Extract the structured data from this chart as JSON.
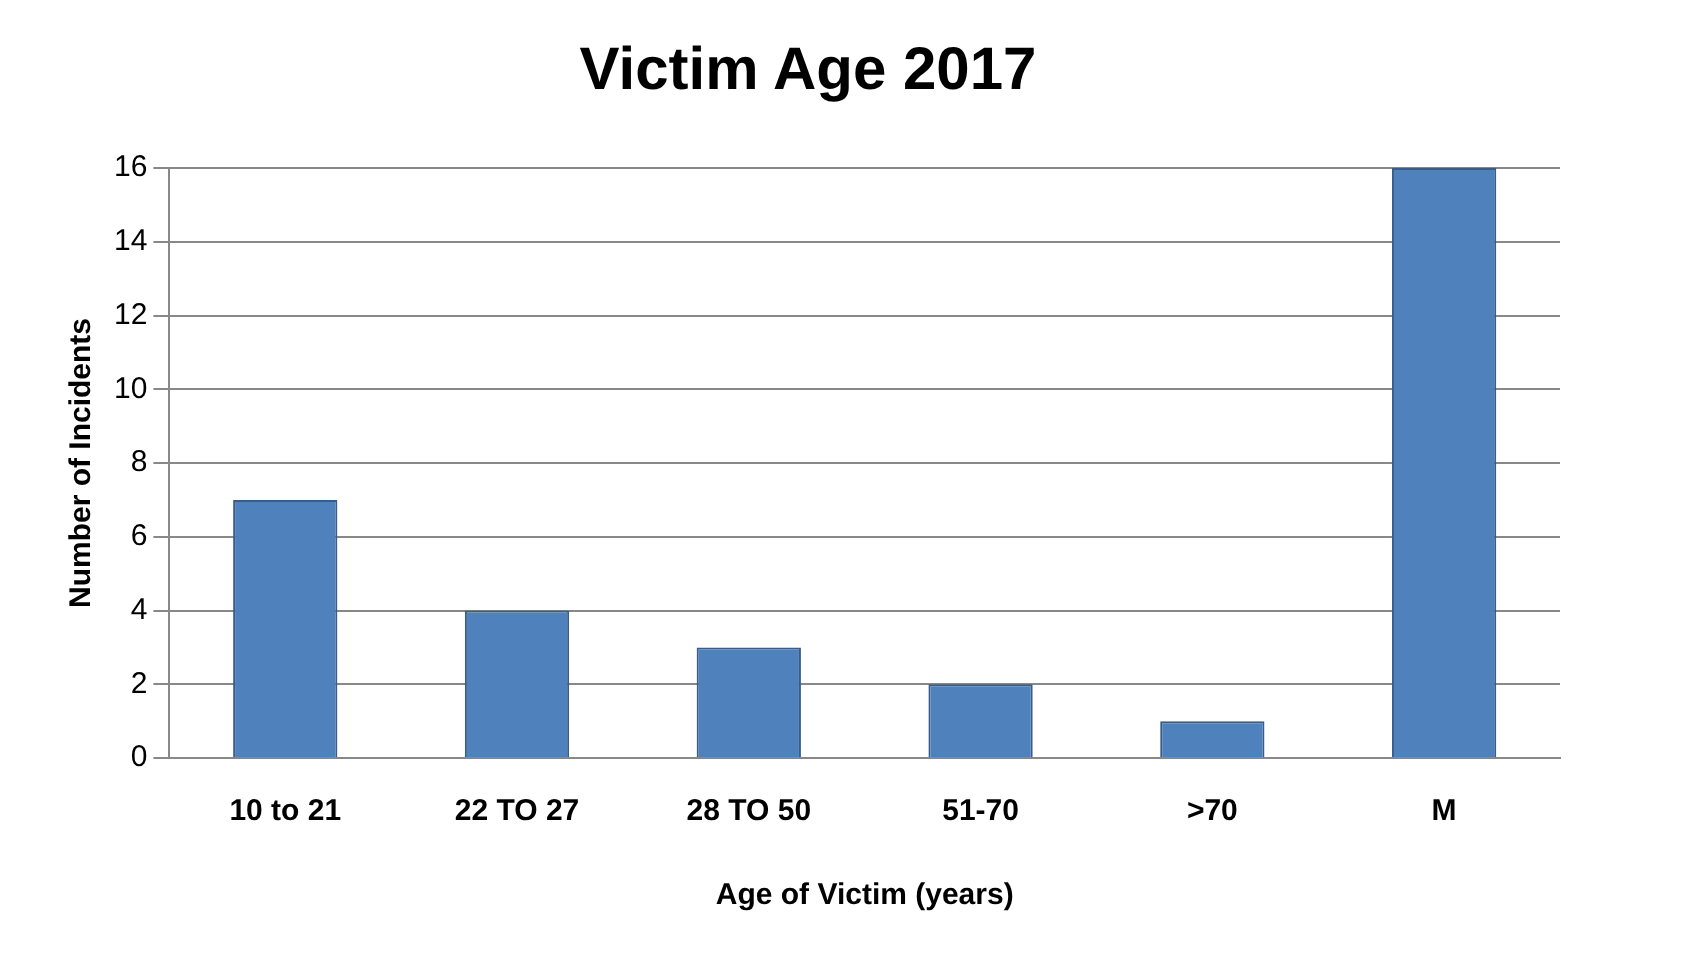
{
  "chart_data": {
    "type": "bar",
    "title": "Victim Age 2017",
    "xlabel": "Age of Victim (years)",
    "ylabel": "Number of Incidents",
    "categories": [
      "10 to 21",
      "22 TO 27",
      "28 TO 50",
      "51-70",
      ">70",
      "M"
    ],
    "values": [
      7,
      4,
      3,
      2,
      1,
      16
    ],
    "color": "#4f81bd",
    "ylim": [
      0,
      16
    ],
    "yticks": [
      0,
      2,
      4,
      6,
      8,
      10,
      12,
      14,
      16
    ],
    "grid": "y"
  }
}
